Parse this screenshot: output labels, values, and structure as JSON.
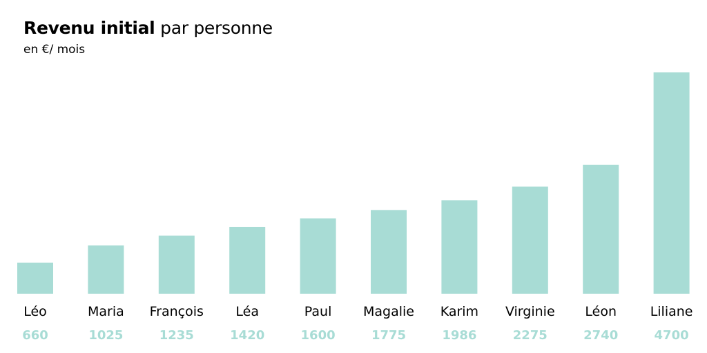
{
  "chart_data": {
    "type": "bar",
    "title_bold": "Revenu initial",
    "title_rest": "par personne",
    "subtitle": "en €/ mois",
    "categories": [
      "Léo",
      "Maria",
      "François",
      "Léa",
      "Paul",
      "Magalie",
      "Karim",
      "Virginie",
      "Léon",
      "Liliane"
    ],
    "values": [
      660,
      1025,
      1235,
      1420,
      1600,
      1775,
      1986,
      2275,
      2740,
      4700
    ],
    "value_labels": [
      "660",
      "1025",
      "1235",
      "1420",
      "1600",
      "1775",
      "1986",
      "2275",
      "2740",
      "4700"
    ],
    "ylim": [
      0,
      4700
    ],
    "grid": false,
    "legend": "none",
    "bar_color": "#a8dcd5",
    "value_label_color": "#a8dcd5"
  }
}
